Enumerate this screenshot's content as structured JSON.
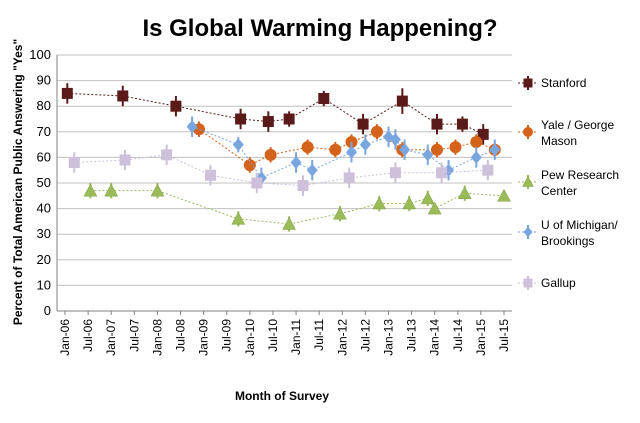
{
  "chart_data": {
    "type": "scatter",
    "title": "Is Global Warming Happening?",
    "xlabel": "Month of Survey",
    "ylabel": "Percent of Total American Public Answering \"Yes\"",
    "ylim": [
      0,
      100
    ],
    "yticks": [
      0,
      10,
      20,
      30,
      40,
      50,
      60,
      70,
      80,
      90,
      100
    ],
    "xlim": [
      2006.0,
      2015.5
    ],
    "xticks": [
      {
        "label": "Jan-06",
        "x": 2006.0
      },
      {
        "label": "Jul-06",
        "x": 2006.5
      },
      {
        "label": "Jan-07",
        "x": 2007.0
      },
      {
        "label": "Jul-07",
        "x": 2007.5
      },
      {
        "label": "Jan-08",
        "x": 2008.0
      },
      {
        "label": "Jul-08",
        "x": 2008.5
      },
      {
        "label": "Jan-09",
        "x": 2009.0
      },
      {
        "label": "Jul-09",
        "x": 2009.5
      },
      {
        "label": "Jan-10",
        "x": 2010.0
      },
      {
        "label": "Jul-10",
        "x": 2010.5
      },
      {
        "label": "Jan-11",
        "x": 2011.0
      },
      {
        "label": "Jul-11",
        "x": 2011.5
      },
      {
        "label": "Jan-12",
        "x": 2012.0
      },
      {
        "label": "Jul-12",
        "x": 2012.5
      },
      {
        "label": "Jan-13",
        "x": 2013.0
      },
      {
        "label": "Jul-13",
        "x": 2013.5
      },
      {
        "label": "Jan-14",
        "x": 2014.0
      },
      {
        "label": "Jul-14",
        "x": 2014.5
      },
      {
        "label": "Jan-15",
        "x": 2015.0
      },
      {
        "label": "Jul-15",
        "x": 2015.5
      }
    ],
    "legend_position": "right",
    "series": [
      {
        "name": "Stanford",
        "marker": "square",
        "color": "#5a1a1a",
        "points": [
          {
            "x": 2006.05,
            "y": 85,
            "err": 4
          },
          {
            "x": 2007.25,
            "y": 84,
            "err": 4
          },
          {
            "x": 2008.4,
            "y": 80,
            "err": 4
          },
          {
            "x": 2009.8,
            "y": 75,
            "err": 4
          },
          {
            "x": 2010.4,
            "y": 74,
            "err": 4
          },
          {
            "x": 2010.85,
            "y": 75,
            "err": 3
          },
          {
            "x": 2011.6,
            "y": 83,
            "err": 3
          },
          {
            "x": 2012.45,
            "y": 73,
            "err": 4
          },
          {
            "x": 2013.3,
            "y": 82,
            "err": 5
          },
          {
            "x": 2014.05,
            "y": 73,
            "err": 4
          },
          {
            "x": 2014.6,
            "y": 73,
            "err": 3
          },
          {
            "x": 2015.05,
            "y": 69,
            "err": 4
          }
        ]
      },
      {
        "name": "Yale / George Mason",
        "marker": "circle",
        "color": "#d4621a",
        "points": [
          {
            "x": 2008.9,
            "y": 71,
            "err": 3
          },
          {
            "x": 2010.0,
            "y": 57,
            "err": 3
          },
          {
            "x": 2010.45,
            "y": 61,
            "err": 3
          },
          {
            "x": 2011.25,
            "y": 64,
            "err": 3
          },
          {
            "x": 2011.85,
            "y": 63,
            "err": 3
          },
          {
            "x": 2012.2,
            "y": 66,
            "err": 3
          },
          {
            "x": 2012.75,
            "y": 70,
            "err": 3
          },
          {
            "x": 2013.3,
            "y": 63,
            "err": 3
          },
          {
            "x": 2014.05,
            "y": 63,
            "err": 3
          },
          {
            "x": 2014.45,
            "y": 64,
            "err": 3
          },
          {
            "x": 2014.9,
            "y": 66,
            "err": 3
          },
          {
            "x": 2015.3,
            "y": 63,
            "err": 3
          }
        ]
      },
      {
        "name": "Pew Research Center",
        "marker": "triangle",
        "color": "#9bbb59",
        "points": [
          {
            "x": 2006.55,
            "y": 47,
            "err": 3
          },
          {
            "x": 2007.0,
            "y": 47,
            "err": 3
          },
          {
            "x": 2008.0,
            "y": 47,
            "err": 3
          },
          {
            "x": 2009.75,
            "y": 36,
            "err": 3
          },
          {
            "x": 2010.85,
            "y": 34,
            "err": 3
          },
          {
            "x": 2011.95,
            "y": 38,
            "err": 3
          },
          {
            "x": 2012.8,
            "y": 42,
            "err": 3
          },
          {
            "x": 2013.45,
            "y": 42,
            "err": 3
          },
          {
            "x": 2013.85,
            "y": 44,
            "err": 3
          },
          {
            "x": 2014.0,
            "y": 40,
            "err": 0
          },
          {
            "x": 2014.65,
            "y": 46,
            "err": 3
          },
          {
            "x": 2015.5,
            "y": 45,
            "err": 0
          }
        ]
      },
      {
        "name": "U of Michigan/ Brookings",
        "marker": "diamond",
        "color": "#7aa6e0",
        "points": [
          {
            "x": 2008.75,
            "y": 72,
            "err": 4
          },
          {
            "x": 2009.75,
            "y": 65,
            "err": 3
          },
          {
            "x": 2010.25,
            "y": 52,
            "err": 4
          },
          {
            "x": 2011.0,
            "y": 58,
            "err": 4
          },
          {
            "x": 2011.35,
            "y": 55,
            "err": 4
          },
          {
            "x": 2012.2,
            "y": 62,
            "err": 4
          },
          {
            "x": 2012.5,
            "y": 65,
            "err": 4
          },
          {
            "x": 2013.0,
            "y": 68,
            "err": 4
          },
          {
            "x": 2013.15,
            "y": 67,
            "err": 4
          },
          {
            "x": 2013.35,
            "y": 63,
            "err": 4
          },
          {
            "x": 2013.85,
            "y": 61,
            "err": 4
          },
          {
            "x": 2014.3,
            "y": 55,
            "err": 4
          },
          {
            "x": 2014.9,
            "y": 60,
            "err": 4
          },
          {
            "x": 2015.3,
            "y": 63,
            "err": 4
          }
        ]
      },
      {
        "name": "Gallup",
        "marker": "square",
        "color": "#ccc0da",
        "points": [
          {
            "x": 2006.2,
            "y": 58,
            "err": 4
          },
          {
            "x": 2007.3,
            "y": 59,
            "err": 4
          },
          {
            "x": 2008.2,
            "y": 61,
            "err": 4
          },
          {
            "x": 2009.15,
            "y": 53,
            "err": 4
          },
          {
            "x": 2010.15,
            "y": 50,
            "err": 4
          },
          {
            "x": 2011.15,
            "y": 49,
            "err": 4
          },
          {
            "x": 2012.15,
            "y": 52,
            "err": 4
          },
          {
            "x": 2013.15,
            "y": 54,
            "err": 4
          },
          {
            "x": 2014.15,
            "y": 54,
            "err": 4
          },
          {
            "x": 2015.15,
            "y": 55,
            "err": 4
          }
        ]
      }
    ]
  }
}
